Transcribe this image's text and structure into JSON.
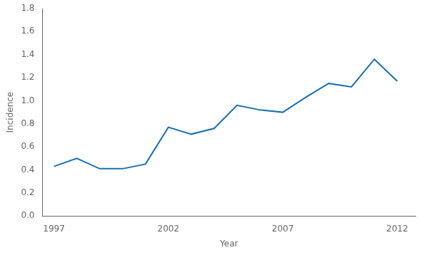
{
  "chart_data": {
    "type": "line",
    "x": [
      1997,
      1998,
      1999,
      2000,
      2001,
      2002,
      2003,
      2004,
      2005,
      2006,
      2007,
      2008,
      2009,
      2010,
      2011,
      2012
    ],
    "values": [
      0.43,
      0.5,
      0.41,
      0.41,
      0.45,
      0.77,
      0.71,
      0.76,
      0.96,
      0.92,
      0.9,
      1.03,
      1.15,
      1.12,
      1.36,
      1.17
    ],
    "color": "#1a6faf",
    "xlabel": "Year",
    "ylabel": "Incidence",
    "xlim": [
      1996.5,
      2012.8
    ],
    "ylim": [
      0.0,
      1.8
    ],
    "xticks": [
      1997,
      2002,
      2007,
      2012
    ],
    "yticks": [
      {
        "value": 0,
        "label": "0.0"
      },
      0.2,
      0.4,
      0.6,
      0.8,
      {
        "value": 1,
        "label": "1.0"
      },
      1.2,
      1.4,
      1.6,
      1.8
    ],
    "grid": false
  }
}
